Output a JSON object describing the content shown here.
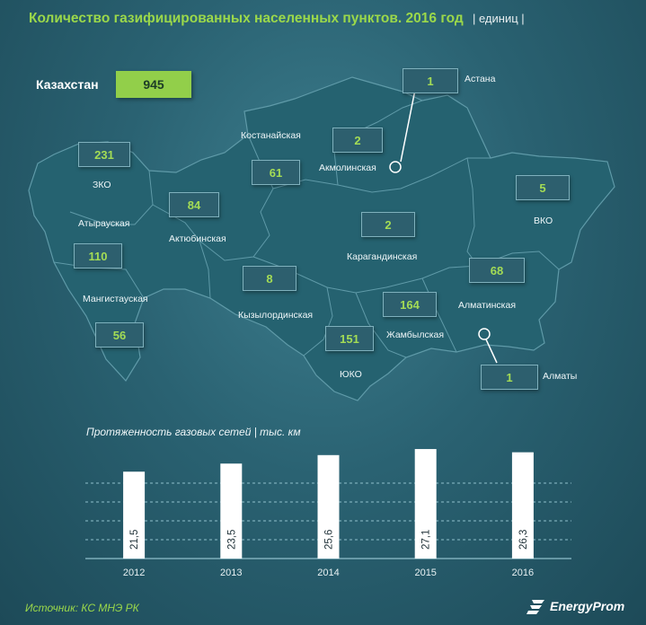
{
  "header": {
    "title": "Количество газифицированных населенных пунктов. 2016 год",
    "unit": "| единиц |"
  },
  "total": {
    "label": "Казахстан",
    "value": "945"
  },
  "colors": {
    "map_fill": "#256270",
    "map_stroke": "#5f9aa8",
    "callout_bg": "#2d5f6e",
    "callout_value": "#a4dc55",
    "bar": "#ffffff",
    "accent": "#92cf4a"
  },
  "regions": [
    {
      "id": "zko",
      "name": "ЗКО",
      "value": "231"
    },
    {
      "id": "atyrau",
      "name": "Атырауская",
      "value": "110"
    },
    {
      "id": "mangystau",
      "name": "Мангистауская",
      "value": "56"
    },
    {
      "id": "aktobe",
      "name": "Актюбинская",
      "value": "84"
    },
    {
      "id": "kostanay",
      "name": "Костанайская",
      "value": "61"
    },
    {
      "id": "akmola",
      "name": "Акмолинская",
      "value": "2"
    },
    {
      "id": "astana",
      "name": "Астана",
      "value": "1"
    },
    {
      "id": "vko",
      "name": "ВКО",
      "value": "5"
    },
    {
      "id": "karaganda",
      "name": "Карагандинская",
      "value": "2"
    },
    {
      "id": "kyzylorda",
      "name": "Кызылординская",
      "value": "8"
    },
    {
      "id": "almaty_obl",
      "name": "Алматинская",
      "value": "68"
    },
    {
      "id": "zhambyl",
      "name": "Жамбылская",
      "value": "164"
    },
    {
      "id": "uko",
      "name": "ЮКО",
      "value": "151"
    },
    {
      "id": "almaty",
      "name": "Алматы",
      "value": "1"
    }
  ],
  "chart_data": {
    "type": "bar",
    "title": "Протяженность  газовых сетей  |  тыс. км",
    "categories": [
      "2012",
      "2013",
      "2014",
      "2015",
      "2016"
    ],
    "values": [
      21.5,
      23.5,
      25.6,
      27.1,
      26.3
    ],
    "value_labels": [
      "21,5",
      "23,5",
      "25,6",
      "27,1",
      "26,3"
    ],
    "ylim": [
      0,
      28
    ],
    "grid": true
  },
  "footer": {
    "source": "Источник: КС МНЭ РК",
    "brand": "EnergyProm"
  }
}
